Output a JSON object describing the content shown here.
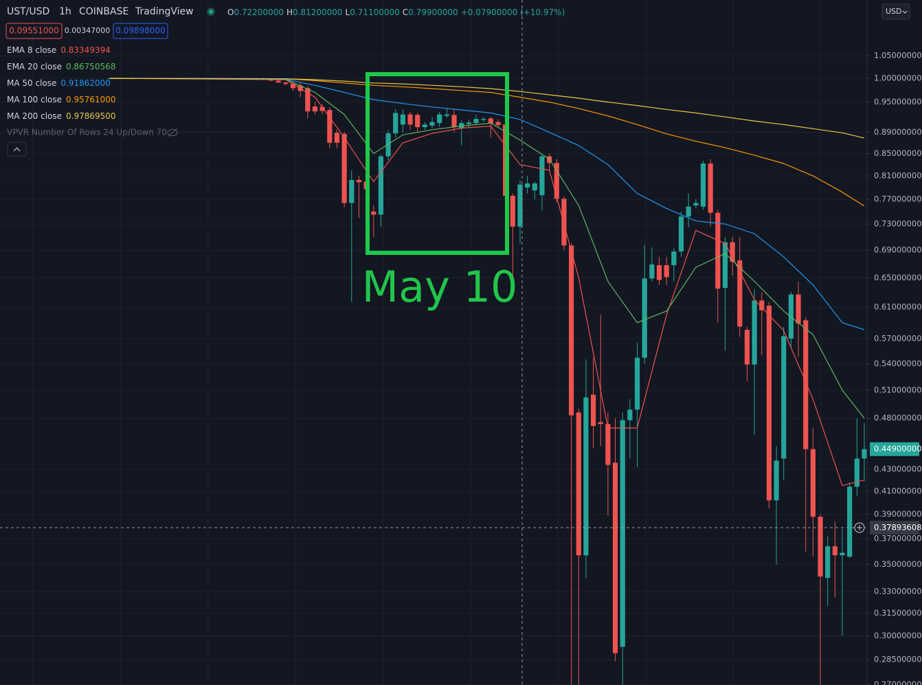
{
  "header": {
    "symbol": "UST/USD",
    "interval": "1h",
    "exchange": "COINBASE",
    "source": "TradingView",
    "ohlc": [
      {
        "key": "O",
        "value": "0.72200000"
      },
      {
        "key": "H",
        "value": "0.81200000"
      },
      {
        "key": "L",
        "value": "0.71100000"
      },
      {
        "key": "C",
        "value": "0.79900000"
      }
    ],
    "change": "+0.07900000 (+10.97%)",
    "sell": "0.09551000",
    "spread": "0.00347000",
    "buy": "0.09898000",
    "indicator": "VPVR Number Of Rows 24 Up/Down 70",
    "currency": "USD"
  },
  "chart_data": {
    "type": "candlestick",
    "up_color": "#26a69a",
    "down_color": "#ef5350",
    "ylim": [
      0.2698,
      1.1843
    ],
    "log_scale": true,
    "grid": true,
    "annotation": "May 10",
    "yticks": [
      {
        "value": 1.05,
        "label": "1.05000000"
      },
      {
        "value": 1.0,
        "label": "1.00000000"
      },
      {
        "value": 0.95,
        "label": "0.95000000"
      },
      {
        "value": 0.89,
        "label": "0.89000000"
      },
      {
        "value": 0.85,
        "label": "0.85000000"
      },
      {
        "value": 0.81,
        "label": "0.81000000"
      },
      {
        "value": 0.77,
        "label": "0.77000000"
      },
      {
        "value": 0.73,
        "label": "0.73000000"
      },
      {
        "value": 0.69,
        "label": "0.69000000"
      },
      {
        "value": 0.65,
        "label": "0.65000000"
      },
      {
        "value": 0.61,
        "label": "0.61000000"
      },
      {
        "value": 0.57,
        "label": "0.57000000"
      },
      {
        "value": 0.54,
        "label": "0.54000000"
      },
      {
        "value": 0.51,
        "label": "0.51000000"
      },
      {
        "value": 0.48,
        "label": "0.48000000"
      },
      {
        "value": 0.43,
        "label": "0.43000000"
      },
      {
        "value": 0.41,
        "label": "0.41000000"
      },
      {
        "value": 0.39,
        "label": "0.39000000"
      },
      {
        "value": 0.37,
        "label": "0.37000000"
      },
      {
        "value": 0.35,
        "label": "0.35000000"
      },
      {
        "value": 0.33,
        "label": "0.33000000"
      },
      {
        "value": 0.315,
        "label": "0.31500000"
      },
      {
        "value": 0.3,
        "label": "0.30000000"
      },
      {
        "value": 0.285,
        "label": "0.28500000"
      },
      {
        "value": 0.27,
        "label": "0.27000000"
      }
    ],
    "last_price": {
      "value": 0.449,
      "label": "0.44900000"
    },
    "crosshair_price": 0.37893608,
    "ohlc": [
      [
        1.0,
        1.001,
        0.999,
        1.0
      ],
      [
        1.0,
        1.001,
        0.998,
        0.999
      ],
      [
        1.0,
        1.001,
        0.999,
        1.0
      ],
      [
        1.0,
        1.001,
        0.998,
        0.999
      ],
      [
        1.0,
        1.001,
        0.999,
        1.0
      ],
      [
        1.0,
        1.001,
        0.998,
        0.999
      ],
      [
        1.0,
        1.001,
        0.999,
        1.0
      ],
      [
        1.0,
        1.001,
        0.998,
        0.999
      ],
      [
        1.0,
        1.001,
        0.999,
        1.0
      ],
      [
        1.0,
        1.001,
        0.998,
        0.999
      ],
      [
        1.0,
        1.001,
        0.999,
        1.0
      ],
      [
        1.0,
        1.001,
        0.998,
        0.999
      ],
      [
        1.0,
        1.001,
        0.999,
        1.0
      ],
      [
        1.0,
        1.001,
        0.998,
        0.999
      ],
      [
        1.0,
        1.001,
        0.999,
        1.0
      ],
      [
        1.0,
        1.001,
        0.998,
        0.999
      ],
      [
        1.0,
        1.001,
        0.999,
        1.0
      ],
      [
        1.0,
        1.001,
        0.998,
        0.999
      ],
      [
        1.0,
        1.001,
        0.999,
        1.0
      ],
      [
        1.0,
        1.001,
        0.998,
        0.999
      ],
      [
        1.0,
        1.001,
        0.999,
        1.0
      ],
      [
        1.0,
        1.001,
        0.998,
        0.999
      ],
      [
        0.999,
        1.0,
        0.994,
        0.995
      ],
      [
        0.995,
        0.997,
        0.99,
        0.991
      ],
      [
        0.991,
        0.993,
        0.985,
        0.988
      ],
      [
        0.988,
        0.994,
        0.973,
        0.979
      ],
      [
        0.985,
        0.99,
        0.96,
        0.973
      ],
      [
        0.979,
        0.984,
        0.917,
        0.931
      ],
      [
        0.941,
        0.95,
        0.925,
        0.931
      ],
      [
        0.94,
        0.946,
        0.926,
        0.932
      ],
      [
        0.934,
        0.94,
        0.86,
        0.87
      ],
      [
        0.889,
        0.895,
        0.86,
        0.87
      ],
      [
        0.887,
        0.89,
        0.757,
        0.764
      ],
      [
        0.764,
        0.82,
        0.617,
        0.803
      ],
      [
        0.803,
        0.81,
        0.74,
        0.799
      ],
      [
        0.8,
        0.81,
        0.77,
        0.787
      ],
      [
        0.75,
        0.76,
        0.71,
        0.745
      ],
      [
        0.745,
        0.848,
        0.726,
        0.845
      ],
      [
        0.845,
        0.894,
        0.838,
        0.888
      ],
      [
        0.888,
        0.936,
        0.88,
        0.928
      ],
      [
        0.905,
        0.935,
        0.89,
        0.925
      ],
      [
        0.925,
        0.93,
        0.895,
        0.905
      ],
      [
        0.924,
        0.928,
        0.89,
        0.9
      ],
      [
        0.9,
        0.91,
        0.895,
        0.905
      ],
      [
        0.903,
        0.92,
        0.898,
        0.91
      ],
      [
        0.908,
        0.93,
        0.9,
        0.925
      ],
      [
        0.922,
        0.938,
        0.918,
        0.925
      ],
      [
        0.924,
        0.935,
        0.89,
        0.9
      ],
      [
        0.898,
        0.913,
        0.865,
        0.908
      ],
      [
        0.906,
        0.915,
        0.9,
        0.909
      ],
      [
        0.908,
        0.925,
        0.905,
        0.916
      ],
      [
        0.914,
        0.92,
        0.91,
        0.916
      ],
      [
        0.917,
        0.92,
        0.88,
        0.907
      ],
      [
        0.91,
        0.915,
        0.9,
        0.904
      ],
      [
        0.905,
        0.915,
        0.715,
        0.776
      ],
      [
        0.776,
        0.78,
        0.646,
        0.726
      ],
      [
        0.726,
        0.803,
        0.7,
        0.795
      ],
      [
        0.79,
        0.81,
        0.78,
        0.797
      ],
      [
        0.785,
        0.8,
        0.77,
        0.797
      ],
      [
        0.777,
        0.848,
        0.751,
        0.845
      ],
      [
        0.845,
        0.85,
        0.82,
        0.833
      ],
      [
        0.833,
        0.84,
        0.765,
        0.771
      ],
      [
        0.771,
        0.775,
        0.69,
        0.697
      ],
      [
        0.697,
        0.7,
        0.27,
        0.483
      ],
      [
        0.486,
        0.49,
        0.27,
        0.357
      ],
      [
        0.357,
        0.545,
        0.34,
        0.502
      ],
      [
        0.505,
        0.547,
        0.45,
        0.472
      ],
      [
        0.476,
        0.6,
        0.452,
        0.474
      ],
      [
        0.474,
        0.486,
        0.389,
        0.434
      ],
      [
        0.436,
        0.48,
        0.284,
        0.289
      ],
      [
        0.293,
        0.486,
        0.27,
        0.478
      ],
      [
        0.478,
        0.5,
        0.44,
        0.489
      ],
      [
        0.489,
        0.565,
        0.432,
        0.547
      ],
      [
        0.547,
        0.698,
        0.54,
        0.649
      ],
      [
        0.649,
        0.694,
        0.645,
        0.669
      ],
      [
        0.668,
        0.68,
        0.64,
        0.647
      ],
      [
        0.668,
        0.68,
        0.64,
        0.651
      ],
      [
        0.668,
        0.693,
        0.645,
        0.688
      ],
      [
        0.688,
        0.75,
        0.68,
        0.742
      ],
      [
        0.742,
        0.78,
        0.725,
        0.758
      ],
      [
        0.76,
        0.77,
        0.755,
        0.764
      ],
      [
        0.758,
        0.837,
        0.753,
        0.832
      ],
      [
        0.832,
        0.84,
        0.726,
        0.748
      ],
      [
        0.748,
        0.753,
        0.59,
        0.635
      ],
      [
        0.636,
        0.71,
        0.555,
        0.702
      ],
      [
        0.702,
        0.71,
        0.653,
        0.673
      ],
      [
        0.675,
        0.71,
        0.572,
        0.585
      ],
      [
        0.581,
        0.585,
        0.52,
        0.539
      ],
      [
        0.539,
        0.634,
        0.463,
        0.619
      ],
      [
        0.619,
        0.63,
        0.55,
        0.606
      ],
      [
        0.612,
        0.617,
        0.395,
        0.402
      ],
      [
        0.402,
        0.452,
        0.35,
        0.438
      ],
      [
        0.44,
        0.585,
        0.42,
        0.573
      ],
      [
        0.57,
        0.63,
        0.56,
        0.627
      ],
      [
        0.627,
        0.645,
        0.548,
        0.589
      ],
      [
        0.593,
        0.597,
        0.36,
        0.449
      ],
      [
        0.449,
        0.47,
        0.356,
        0.388
      ],
      [
        0.388,
        0.39,
        0.27,
        0.341
      ],
      [
        0.34,
        0.372,
        0.32,
        0.364
      ],
      [
        0.364,
        0.384,
        0.326,
        0.357
      ],
      [
        0.357,
        0.378,
        0.3,
        0.359
      ],
      [
        0.356,
        0.418,
        0.355,
        0.414
      ],
      [
        0.414,
        0.48,
        0.406,
        0.44
      ],
      [
        0.44,
        0.475,
        0.419,
        0.449
      ]
    ],
    "series": [
      {
        "name": "EMA 8 close",
        "legend_value": "0.83349394",
        "color": "#f0534f",
        "x": [
          0,
          24,
          28,
          32,
          36,
          40,
          44,
          48,
          52,
          56,
          60,
          64,
          68,
          72,
          76,
          80,
          84,
          88,
          92,
          96,
          100,
          103
        ],
        "values": [
          1.0,
          0.997,
          0.96,
          0.88,
          0.8,
          0.87,
          0.888,
          0.898,
          0.902,
          0.83,
          0.82,
          0.65,
          0.47,
          0.47,
          0.6,
          0.72,
          0.7,
          0.62,
          0.58,
          0.5,
          0.415,
          0.42
        ]
      },
      {
        "name": "EMA 20 close",
        "legend_value": "0.86750568",
        "color": "#5cb85c",
        "x": [
          0,
          24,
          28,
          32,
          36,
          40,
          44,
          48,
          52,
          56,
          60,
          64,
          68,
          72,
          76,
          80,
          84,
          88,
          92,
          96,
          100,
          103
        ],
        "values": [
          1.0,
          0.998,
          0.97,
          0.925,
          0.85,
          0.885,
          0.895,
          0.902,
          0.908,
          0.875,
          0.84,
          0.76,
          0.645,
          0.59,
          0.605,
          0.665,
          0.685,
          0.645,
          0.605,
          0.575,
          0.51,
          0.48
        ]
      },
      {
        "name": "MA 50 close",
        "legend_value": "0.91862000",
        "color": "#2196f3",
        "x": [
          0,
          24,
          28,
          32,
          36,
          40,
          44,
          48,
          52,
          56,
          60,
          64,
          68,
          72,
          76,
          80,
          84,
          88,
          92,
          96,
          100,
          103
        ],
        "values": [
          1.0,
          0.998,
          0.985,
          0.97,
          0.955,
          0.947,
          0.94,
          0.934,
          0.928,
          0.915,
          0.89,
          0.865,
          0.83,
          0.78,
          0.755,
          0.735,
          0.73,
          0.715,
          0.68,
          0.64,
          0.59,
          0.581
        ]
      },
      {
        "name": "MA 100 close",
        "legend_value": "0.95761000",
        "color": "#ff9800",
        "x": [
          0,
          24,
          28,
          32,
          36,
          40,
          44,
          48,
          52,
          56,
          60,
          64,
          68,
          72,
          76,
          80,
          84,
          88,
          92,
          96,
          100,
          103
        ],
        "values": [
          1.0,
          0.999,
          0.995,
          0.99,
          0.985,
          0.982,
          0.978,
          0.974,
          0.97,
          0.96,
          0.95,
          0.937,
          0.922,
          0.905,
          0.887,
          0.873,
          0.861,
          0.847,
          0.832,
          0.81,
          0.782,
          0.759
        ]
      },
      {
        "name": "MA 200 close",
        "legend_value": "0.97869500",
        "color": "#e8c84a",
        "x": [
          0,
          24,
          28,
          32,
          36,
          40,
          44,
          48,
          52,
          56,
          60,
          64,
          68,
          72,
          76,
          80,
          84,
          88,
          92,
          96,
          100,
          103
        ],
        "values": [
          1.0,
          0.999,
          0.997,
          0.994,
          0.99,
          0.988,
          0.985,
          0.982,
          0.978,
          0.972,
          0.965,
          0.958,
          0.95,
          0.943,
          0.935,
          0.928,
          0.92,
          0.912,
          0.905,
          0.897,
          0.889,
          0.879
        ]
      }
    ]
  }
}
